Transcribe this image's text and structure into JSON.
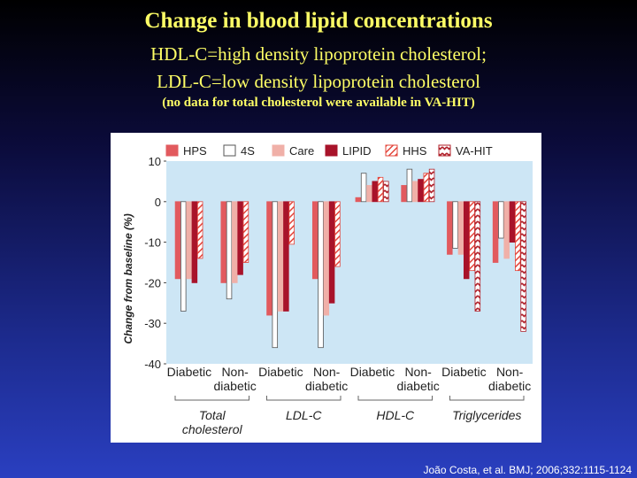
{
  "header": {
    "title": "Change in blood lipid concentrations",
    "subtitle_1": "HDL-C=high density lipoprotein cholesterol;",
    "subtitle_2": "LDL-C=low density lipoprotein cholesterol",
    "note": "(no data for total cholesterol were available in VA-HIT)"
  },
  "citation": "João Costa, et al. BMJ; 2006;332:1115-1124",
  "colors": {
    "plot_background": "#cde6f5",
    "HPS": "#e25a5e",
    "4S": "#ffffff",
    "Care": "#f0b0a8",
    "LIPID": "#a8132a",
    "HHS": "#e3443a",
    "VA-HIT": "#b0202a"
  },
  "chart_data": {
    "type": "bar",
    "ylabel": "Change from baseline (%)",
    "ylim": [
      -40,
      10
    ],
    "yticks": [
      10,
      0,
      -10,
      -20,
      -30,
      -40
    ],
    "legend_position": "top",
    "series_names": [
      "HPS",
      "4S",
      "Care",
      "LIPID",
      "HHS",
      "VA-HIT"
    ],
    "subgroups": [
      [
        "Diabetic",
        ""
      ],
      [
        "Non-",
        "diabetic"
      ],
      [
        "Diabetic",
        ""
      ],
      [
        "Non-",
        "diabetic"
      ],
      [
        "Diabetic",
        ""
      ],
      [
        "Non-",
        "diabetic"
      ],
      [
        "Diabetic",
        ""
      ],
      [
        "Non-",
        "diabetic"
      ]
    ],
    "groups": [
      [
        "Total",
        "cholesterol"
      ],
      [
        "LDL-C",
        ""
      ],
      [
        "HDL-C",
        ""
      ],
      [
        "Triglycerides",
        ""
      ]
    ],
    "values": [
      [
        -19,
        -27,
        -19,
        -20,
        -14,
        null
      ],
      [
        -20,
        -24,
        -20,
        -18,
        -15,
        null
      ],
      [
        -28,
        -36,
        -27,
        -27,
        -10.5,
        null
      ],
      [
        -19,
        -36,
        -28,
        -25,
        -16,
        null
      ],
      [
        1,
        7,
        4,
        5,
        6,
        5
      ],
      [
        4,
        8,
        5,
        5.5,
        7,
        8
      ],
      [
        -13,
        -11.5,
        -13,
        -19,
        -17,
        -27
      ],
      [
        -15,
        -9,
        -14,
        -10,
        -17,
        -32
      ]
    ]
  }
}
